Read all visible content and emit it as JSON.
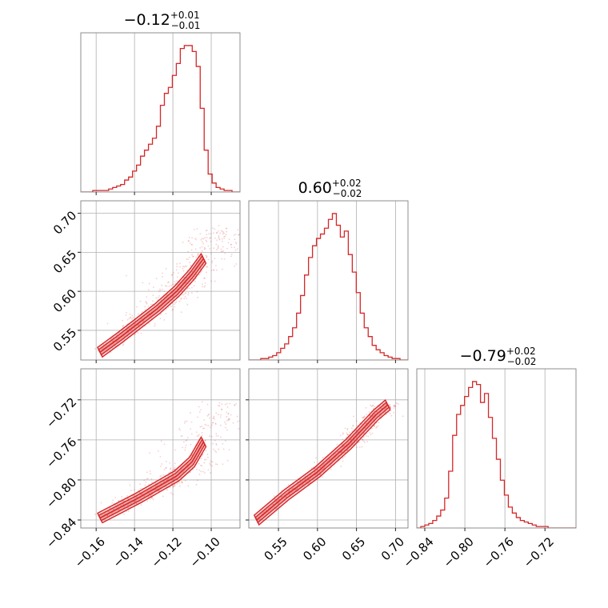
{
  "chart_data": {
    "type": "corner",
    "color": "#d62728",
    "parameters": [
      {
        "range": [
          -0.168,
          -0.085
        ],
        "ticks": [
          -0.16,
          -0.14,
          -0.12,
          -0.1
        ],
        "tick_labels": [
          "−0.16",
          "−0.14",
          "−0.12",
          "−0.10"
        ]
      },
      {
        "range": [
          0.512,
          0.716
        ],
        "ticks": [
          0.55,
          0.6,
          0.65,
          0.7
        ],
        "tick_labels": [
          "0.55",
          "0.60",
          "0.65",
          "0.70"
        ]
      },
      {
        "range": [
          -0.848,
          -0.689
        ],
        "ticks": [
          -0.84,
          -0.8,
          -0.76,
          -0.72
        ],
        "tick_labels": [
          "−0.84",
          "−0.80",
          "−0.76",
          "−0.72"
        ]
      }
    ],
    "titles": [
      {
        "median": "−0.12",
        "plus": "+0.01",
        "minus": "−0.01"
      },
      {
        "median": "0.60",
        "plus": "+0.02",
        "minus": "−0.02"
      },
      {
        "median": "−0.79",
        "plus": "+0.02",
        "minus": "−0.02"
      }
    ],
    "histograms": [
      {
        "edges_start": -0.168,
        "edges_end": -0.085,
        "counts": [
          0,
          0,
          0,
          1,
          1,
          1,
          1,
          2,
          3,
          4,
          5,
          8,
          10,
          14,
          18,
          24,
          28,
          32,
          36,
          44,
          58,
          66,
          70,
          78,
          86,
          96,
          98,
          98,
          94,
          84,
          56,
          28,
          12,
          6,
          3,
          2,
          1,
          1,
          0,
          0
        ]
      },
      {
        "edges_start": 0.512,
        "edges_end": 0.716,
        "counts": [
          0,
          0,
          0,
          1,
          1,
          2,
          3,
          5,
          8,
          11,
          16,
          22,
          32,
          44,
          58,
          70,
          78,
          83,
          86,
          90,
          96,
          100,
          92,
          84,
          88,
          72,
          60,
          46,
          32,
          22,
          16,
          10,
          7,
          5,
          3,
          2,
          1,
          1,
          0,
          0
        ]
      },
      {
        "edges_start": -0.848,
        "edges_end": -0.689,
        "counts": [
          0,
          1,
          2,
          3,
          5,
          8,
          12,
          20,
          38,
          62,
          76,
          82,
          88,
          94,
          98,
          96,
          84,
          90,
          74,
          60,
          46,
          32,
          22,
          14,
          10,
          7,
          5,
          4,
          3,
          2,
          1,
          1,
          1,
          0,
          0,
          0,
          0,
          0,
          0,
          0
        ]
      }
    ],
    "correlations": [
      {
        "x_param": 0,
        "y_param": 1,
        "curve": [
          [
            -0.158,
            0.522
          ],
          [
            -0.148,
            0.54
          ],
          [
            -0.138,
            0.559
          ],
          [
            -0.128,
            0.578
          ],
          [
            -0.118,
            0.6
          ],
          [
            -0.11,
            0.622
          ],
          [
            -0.104,
            0.642
          ]
        ],
        "spread_x": 0.005,
        "scatter_extent": [
          -0.158,
          -0.092
        ]
      },
      {
        "x_param": 0,
        "y_param": 2,
        "curve": [
          [
            -0.158,
            -0.838
          ],
          [
            -0.148,
            -0.828
          ],
          [
            -0.138,
            -0.818
          ],
          [
            -0.128,
            -0.807
          ],
          [
            -0.118,
            -0.796
          ],
          [
            -0.11,
            -0.782
          ],
          [
            -0.104,
            -0.762
          ]
        ],
        "spread_x": 0.005,
        "scatter_extent": [
          -0.158,
          -0.092
        ]
      },
      {
        "x_param": 1,
        "y_param": 2,
        "curve": [
          [
            0.522,
            -0.84
          ],
          [
            0.56,
            -0.815
          ],
          [
            0.6,
            -0.792
          ],
          [
            0.64,
            -0.764
          ],
          [
            0.675,
            -0.735
          ],
          [
            0.69,
            -0.725
          ]
        ],
        "spread_x": 0.006,
        "scatter_extent": [
          0.522,
          0.692
        ]
      }
    ]
  }
}
